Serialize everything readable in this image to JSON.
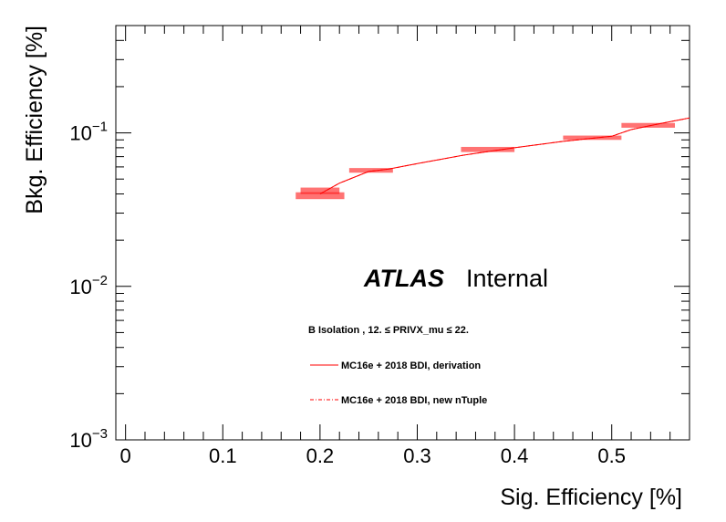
{
  "chart_data": {
    "type": "line",
    "xlabel": "Sig. Efficiency [%]",
    "ylabel": "Bkg. Efficiency [%]",
    "xlim": [
      -0.01,
      0.58
    ],
    "ylim": [
      0.001,
      0.5
    ],
    "yscale": "log",
    "grid": false,
    "x_ticks": [
      {
        "value": 0,
        "label": "0"
      },
      {
        "value": 0.1,
        "label": "0.1"
      },
      {
        "value": 0.2,
        "label": "0.2"
      },
      {
        "value": 0.3,
        "label": "0.3"
      },
      {
        "value": 0.4,
        "label": "0.4"
      },
      {
        "value": 0.5,
        "label": "0.5"
      }
    ],
    "y_ticks": [
      {
        "value": 0.001,
        "base": "10",
        "exp": "−3"
      },
      {
        "value": 0.01,
        "base": "10",
        "exp": "−2"
      },
      {
        "value": 0.1,
        "base": "10",
        "exp": "−1"
      }
    ],
    "annotations": {
      "atlas": "ATLAS",
      "status": "Internal",
      "selection": "B Isolation , 12. ≤ PRIVX_mu ≤ 22."
    },
    "legend_position": "bottom-center",
    "series": [
      {
        "name": "MC16e + 2018 BDI, derivation",
        "color": "#ff0000",
        "style": "solid",
        "x": [
          0.2,
          0.22,
          0.25,
          0.27,
          0.3,
          0.35,
          0.4,
          0.45,
          0.5,
          0.52,
          0.55,
          0.58
        ],
        "y": [
          0.04,
          0.047,
          0.056,
          0.058,
          0.063,
          0.072,
          0.08,
          0.088,
          0.095,
          0.105,
          0.115,
          0.125
        ]
      },
      {
        "name": "MC16e + 2018 BDI, new nTuple",
        "color": "#ff0000",
        "style": "dashdot",
        "x": [
          0.2,
          0.22,
          0.25,
          0.27,
          0.3,
          0.35,
          0.4,
          0.45,
          0.5,
          0.52,
          0.55,
          0.58
        ],
        "y": [
          0.04,
          0.047,
          0.056,
          0.058,
          0.063,
          0.072,
          0.08,
          0.088,
          0.095,
          0.105,
          0.115,
          0.125
        ]
      }
    ],
    "error_boxes": [
      {
        "x_lo": 0.175,
        "x_hi": 0.225,
        "y": 0.039,
        "y_lo": 0.037,
        "y_hi": 0.041
      },
      {
        "x_lo": 0.18,
        "x_hi": 0.22,
        "y": 0.042,
        "y_lo": 0.04,
        "y_hi": 0.044
      },
      {
        "x_lo": 0.23,
        "x_hi": 0.275,
        "y": 0.057,
        "y_lo": 0.055,
        "y_hi": 0.059
      },
      {
        "x_lo": 0.345,
        "x_hi": 0.4,
        "y": 0.078,
        "y_lo": 0.075,
        "y_hi": 0.081
      },
      {
        "x_lo": 0.45,
        "x_hi": 0.51,
        "y": 0.093,
        "y_lo": 0.09,
        "y_hi": 0.096
      },
      {
        "x_lo": 0.51,
        "x_hi": 0.565,
        "y": 0.112,
        "y_lo": 0.108,
        "y_hi": 0.116
      }
    ]
  }
}
